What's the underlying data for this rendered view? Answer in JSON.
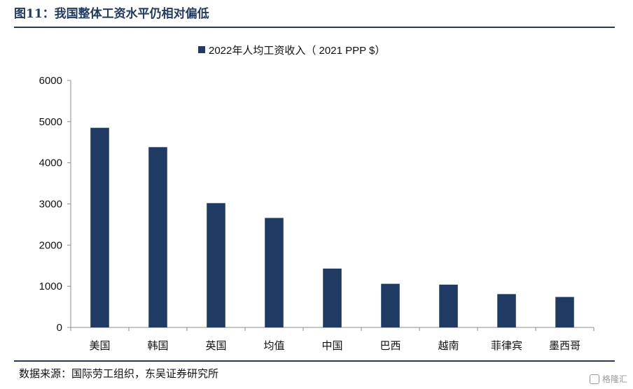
{
  "figure": {
    "title": "图11：我国整体工资水平仍相对偏低",
    "source": "数据来源：国际劳工组织，东吴证券研究所",
    "watermark": "格隆汇"
  },
  "colors": {
    "bar": "#1f3b63",
    "axis": "#8c8c8c",
    "rule": "#1f3b63"
  },
  "chart_data": {
    "type": "bar",
    "title": "",
    "xlabel": "",
    "ylabel": "",
    "categories": [
      "美国",
      "韩国",
      "英国",
      "均值",
      "中国",
      "巴西",
      "越南",
      "菲律宾",
      "墨西哥"
    ],
    "series": [
      {
        "name": "2022年人均工资收入（ 2021 PPP $）",
        "values": [
          4850,
          4380,
          3020,
          2660,
          1430,
          1060,
          1040,
          810,
          740
        ]
      }
    ],
    "ylim": [
      0,
      6000
    ],
    "yticks": [
      0,
      1000,
      2000,
      3000,
      4000,
      5000,
      6000
    ],
    "legend_position": "top-center",
    "grid": false
  }
}
